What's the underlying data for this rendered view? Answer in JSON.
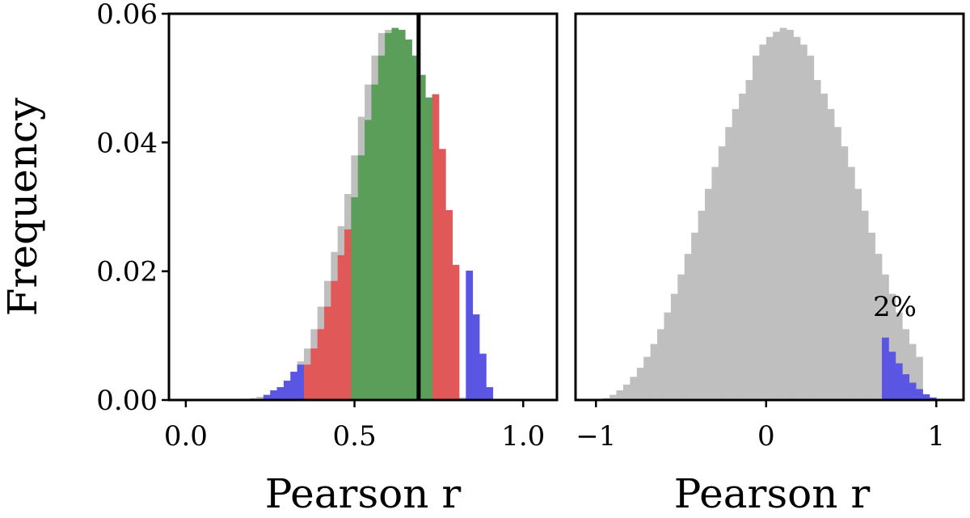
{
  "colors": {
    "gray": "#bfbfbf",
    "green": "#5a9e5a",
    "red": "#e05858",
    "blue": "#5a55e3",
    "line": "#000000"
  },
  "chart_data": [
    {
      "type": "bar",
      "panel": "left",
      "xlabel": "Pearson r",
      "ylabel": "Frequency",
      "xlim": [
        -0.05,
        1.1
      ],
      "ylim": [
        0,
        0.06
      ],
      "xticks": [
        0.0,
        0.5,
        1.0
      ],
      "xtick_labels": [
        "0.0",
        "0.5",
        "1.0"
      ],
      "yticks": [
        0.0,
        0.02,
        0.04,
        0.06
      ],
      "ytick_labels": [
        "0.00",
        "0.02",
        "0.04",
        "0.06"
      ],
      "grid": false,
      "vline_x": 0.69,
      "series": [
        {
          "color": "gray",
          "x0": 0.15,
          "bin_width": 0.02,
          "values": [
            0.0,
            0.0002,
            0.0003,
            0.0005,
            0.0008,
            0.0013,
            0.002,
            0.003,
            0.0044,
            0.006,
            0.008,
            0.011,
            0.0145,
            0.0185,
            0.023,
            0.027,
            0.032,
            0.038,
            0.044,
            0.049,
            0.0535,
            0.057,
            0.0575,
            0.056,
            0.053,
            0.047,
            0.039,
            0.03,
            0.0205,
            0.012,
            0.006,
            0.003,
            0.0013,
            0.0004
          ]
        },
        {
          "color": "blue",
          "x0": 0.23,
          "bin_width": 0.02,
          "values": [
            0.0008,
            0.0015,
            0.002,
            0.003,
            0.0044,
            0.0055,
            0.0,
            0.0,
            0.0,
            0.0,
            0.0,
            0.0,
            0.0,
            0.0,
            0.0,
            0.0,
            0.0,
            0.0,
            0.0,
            0.0,
            0.0,
            0.0,
            0.0,
            0.0,
            0.0,
            0.0,
            0.0,
            0.0,
            0.0,
            0.0,
            0.0201,
            0.0133,
            0.0072,
            0.002
          ]
        },
        {
          "color": "red",
          "x0": 0.35,
          "bin_width": 0.02,
          "values": [
            0.0055,
            0.008,
            0.011,
            0.0145,
            0.0185,
            0.0225,
            0.0265,
            0.0,
            0.0,
            0.0,
            0.0,
            0.0,
            0.0,
            0.0,
            0.0,
            0.0,
            0.0,
            0.0,
            0.0,
            0.0475,
            0.039,
            0.0295,
            0.021,
            0.0
          ]
        },
        {
          "color": "green",
          "x0": 0.49,
          "bin_width": 0.02,
          "values": [
            0.0315,
            0.038,
            0.0435,
            0.049,
            0.0535,
            0.057,
            0.0578,
            0.0575,
            0.056,
            0.0535,
            0.0505,
            0.047
          ]
        }
      ]
    },
    {
      "type": "bar",
      "panel": "right",
      "xlabel": "Pearson r",
      "ylabel": "",
      "xlim": [
        -1.12,
        1.16
      ],
      "ylim": [
        0,
        0.06
      ],
      "xticks": [
        -1,
        0,
        1
      ],
      "xtick_labels": [
        "−1",
        "0",
        "1"
      ],
      "grid": false,
      "annotation": "2%",
      "series": [
        {
          "color": "gray",
          "x0": -0.96,
          "bin_width": 0.04,
          "values": [
            0.0003,
            0.0008,
            0.0015,
            0.0024,
            0.0036,
            0.005,
            0.0067,
            0.0087,
            0.011,
            0.0136,
            0.0165,
            0.0195,
            0.0227,
            0.026,
            0.0294,
            0.0328,
            0.0362,
            0.0394,
            0.0424,
            0.0452,
            0.0476,
            0.0497,
            0.0535,
            0.0552,
            0.0564,
            0.0572,
            0.0578,
            0.0575,
            0.0564,
            0.0552,
            0.0535,
            0.0497,
            0.0476,
            0.0452,
            0.0424,
            0.0394,
            0.0362,
            0.0328,
            0.0294,
            0.026,
            0.0227,
            0.0195,
            0.0165,
            0.0136,
            0.011,
            0.0087,
            0.0067
          ]
        },
        {
          "color": "blue",
          "x0": 0.68,
          "bin_width": 0.04,
          "values": [
            0.0097,
            0.0075,
            0.0057,
            0.004,
            0.0027,
            0.0017,
            0.0009,
            0.0004
          ]
        }
      ]
    }
  ]
}
